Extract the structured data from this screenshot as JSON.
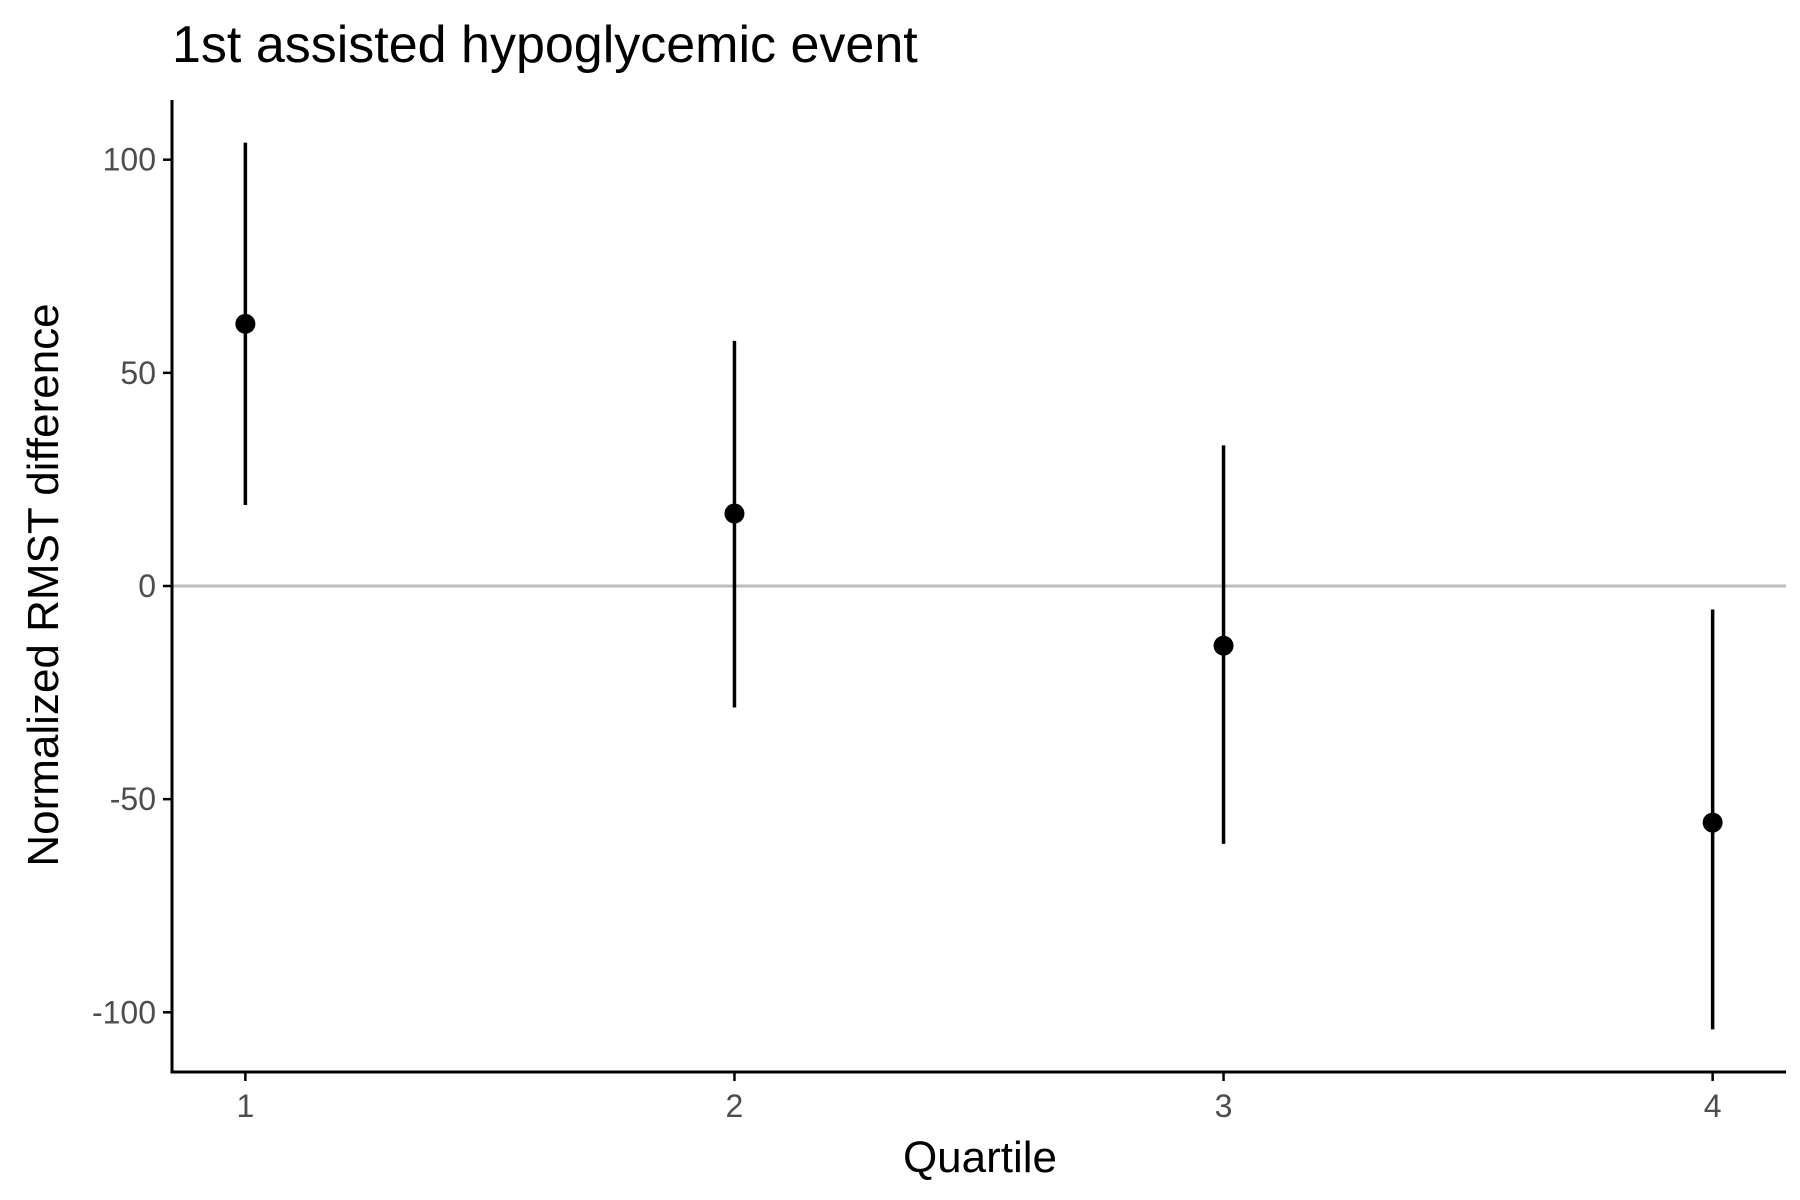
{
  "chart_data": {
    "type": "scatter",
    "title": "1st assisted hypoglycemic event",
    "xlabel": "Quartile",
    "ylabel": "Normalized RMST difference",
    "x_ticks": [
      "1",
      "2",
      "3",
      "4"
    ],
    "y_ticks": [
      "100",
      "50",
      "0",
      "-50",
      "-100"
    ],
    "xlim": [
      0.85,
      4.15
    ],
    "ylim": [
      -114,
      114
    ],
    "grid": false,
    "reference_line": {
      "y": 0,
      "color": "#bebebe"
    },
    "series": [
      {
        "points": [
          {
            "x": 1,
            "y": 61.5,
            "lower": 19,
            "upper": 104
          },
          {
            "x": 2,
            "y": 17,
            "lower": -28.5,
            "upper": 57.5
          },
          {
            "x": 3,
            "y": -14,
            "lower": -60.5,
            "upper": 33
          },
          {
            "x": 4,
            "y": -55.5,
            "lower": -104,
            "upper": -5.5
          }
        ]
      }
    ],
    "colors": {
      "points": "#000000",
      "axes": "#000000",
      "tick_text": "#4d4d4d"
    }
  }
}
